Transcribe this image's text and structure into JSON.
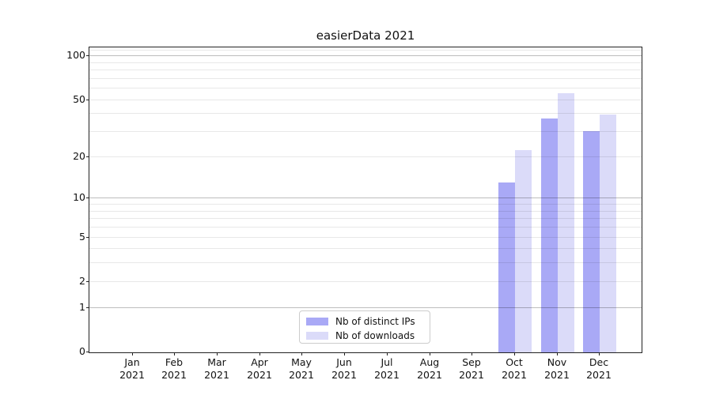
{
  "title": "easierData 2021",
  "chart_data": {
    "type": "bar",
    "title": "easierData 2021",
    "categories": [
      "Jan 2021",
      "Feb 2021",
      "Mar 2021",
      "Apr 2021",
      "May 2021",
      "Jun 2021",
      "Jul 2021",
      "Aug 2021",
      "Sep 2021",
      "Oct 2021",
      "Nov 2021",
      "Dec 2021"
    ],
    "series": [
      {
        "name": "Nb of distinct IPs",
        "color": "#a9a9f6",
        "values": [
          0,
          0,
          0,
          0,
          0,
          0,
          0,
          0,
          0,
          13,
          37,
          30
        ]
      },
      {
        "name": "Nb of downloads",
        "color": "#dbdbf9",
        "values": [
          0,
          0,
          0,
          0,
          0,
          0,
          0,
          0,
          0,
          22,
          55,
          39
        ]
      }
    ],
    "xlabel": "",
    "ylabel": "",
    "yscale": "log1p",
    "ylim": [
      0,
      115
    ],
    "y_ticks": [
      100,
      50,
      20,
      10,
      5,
      2,
      1,
      0
    ],
    "grid": true,
    "grid_minor_values": [
      2,
      3,
      4,
      5,
      6,
      7,
      8,
      9,
      20,
      30,
      40,
      50,
      60,
      70,
      80,
      90,
      110
    ],
    "grid_major_values": [
      1,
      10,
      100
    ],
    "legend_position": "lower center"
  },
  "colors": {
    "spine": "#222222",
    "text": "#111111",
    "legend_border": "#cccccc"
  }
}
